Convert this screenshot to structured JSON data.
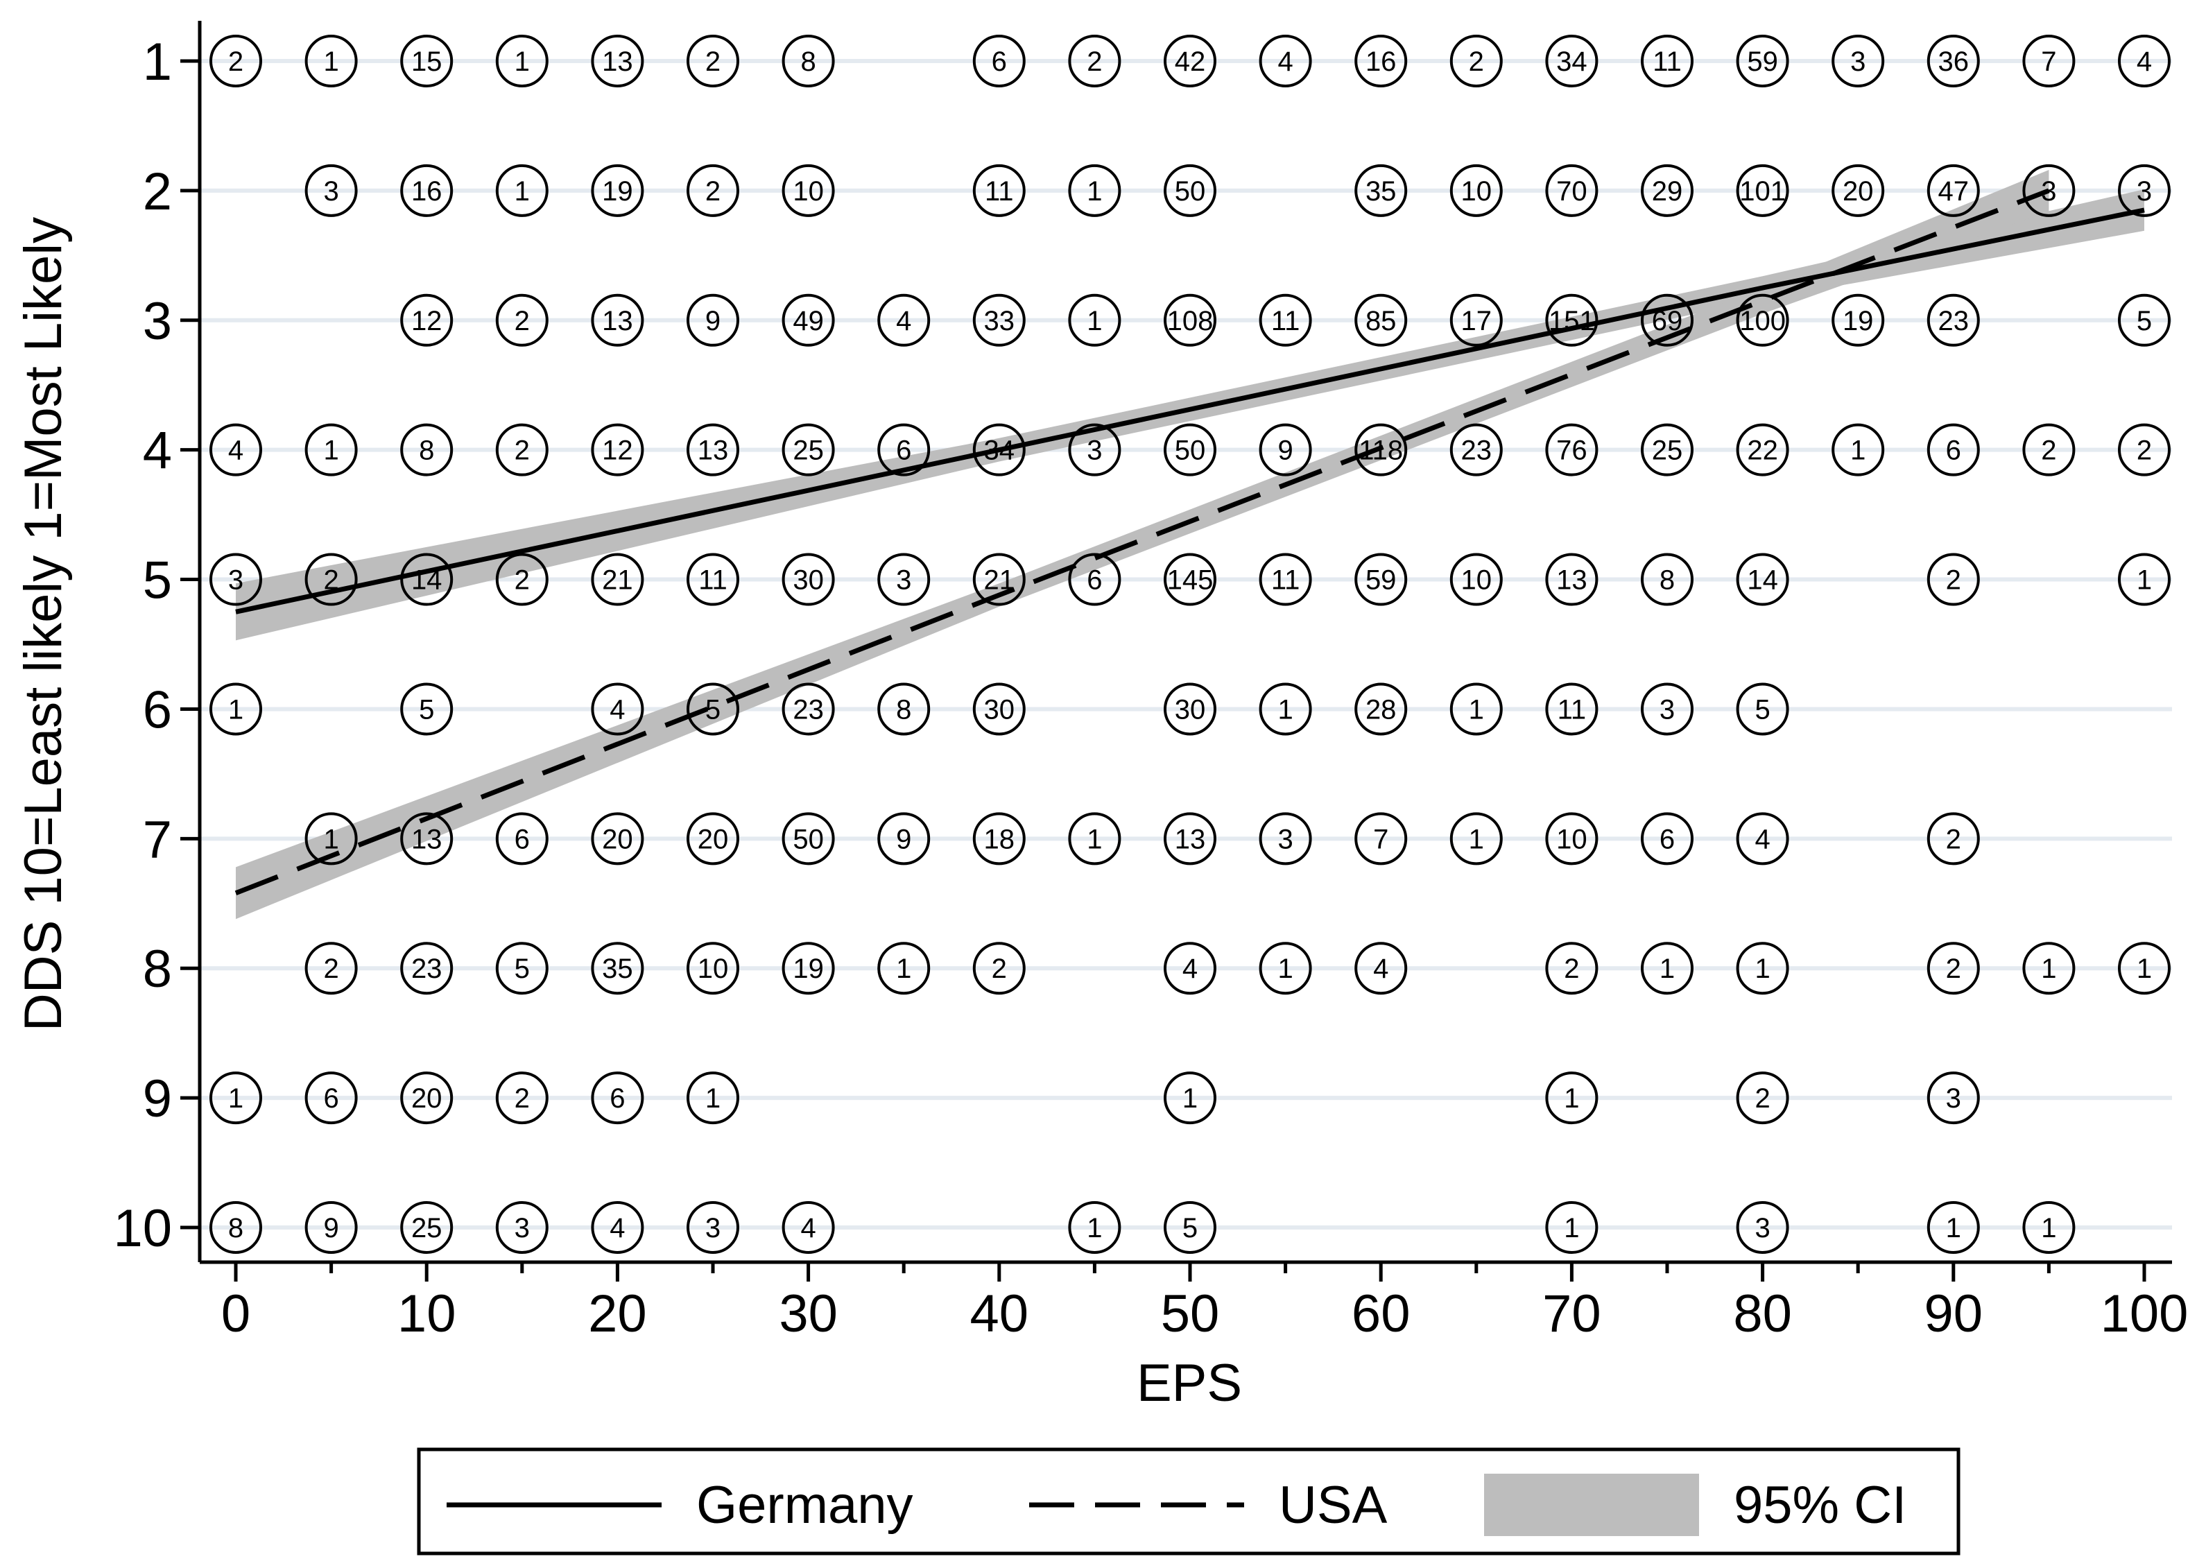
{
  "chart_data": {
    "type": "scatter",
    "xlabel": "EPS",
    "ylabel": "DDS 10=Least likely 1=Most Likely",
    "xlim": [
      0,
      100
    ],
    "ylim": [
      1,
      10
    ],
    "y_reversed": true,
    "x_ticks": [
      0,
      10,
      20,
      30,
      40,
      50,
      60,
      70,
      80,
      90,
      100
    ],
    "y_ticks": [
      1,
      2,
      3,
      4,
      5,
      6,
      7,
      8,
      9,
      10
    ],
    "grid": "horizontal",
    "legend_position": "bottom",
    "colors": {
      "band": "#bdbdbd",
      "line": "#000000",
      "grid": "#e4eaf0"
    },
    "count_markers": [
      [
        0,
        1,
        2
      ],
      [
        5,
        1,
        1
      ],
      [
        10,
        1,
        15
      ],
      [
        15,
        1,
        1
      ],
      [
        20,
        1,
        13
      ],
      [
        25,
        1,
        2
      ],
      [
        30,
        1,
        8
      ],
      [
        40,
        1,
        6
      ],
      [
        45,
        1,
        2
      ],
      [
        50,
        1,
        42
      ],
      [
        55,
        1,
        4
      ],
      [
        60,
        1,
        16
      ],
      [
        65,
        1,
        2
      ],
      [
        70,
        1,
        34
      ],
      [
        75,
        1,
        11
      ],
      [
        80,
        1,
        59
      ],
      [
        85,
        1,
        3
      ],
      [
        90,
        1,
        36
      ],
      [
        95,
        1,
        7
      ],
      [
        100,
        1,
        4
      ],
      [
        5,
        2,
        3
      ],
      [
        10,
        2,
        16
      ],
      [
        15,
        2,
        1
      ],
      [
        20,
        2,
        19
      ],
      [
        25,
        2,
        2
      ],
      [
        30,
        2,
        10
      ],
      [
        40,
        2,
        11
      ],
      [
        45,
        2,
        1
      ],
      [
        50,
        2,
        50
      ],
      [
        60,
        2,
        35
      ],
      [
        65,
        2,
        10
      ],
      [
        70,
        2,
        70
      ],
      [
        75,
        2,
        29
      ],
      [
        80,
        2,
        101
      ],
      [
        85,
        2,
        20
      ],
      [
        90,
        2,
        47
      ],
      [
        95,
        2,
        3
      ],
      [
        100,
        2,
        3
      ],
      [
        10,
        3,
        12
      ],
      [
        15,
        3,
        2
      ],
      [
        20,
        3,
        13
      ],
      [
        25,
        3,
        9
      ],
      [
        30,
        3,
        49
      ],
      [
        35,
        3,
        4
      ],
      [
        40,
        3,
        33
      ],
      [
        45,
        3,
        1
      ],
      [
        50,
        3,
        108
      ],
      [
        55,
        3,
        11
      ],
      [
        60,
        3,
        85
      ],
      [
        65,
        3,
        17
      ],
      [
        70,
        3,
        151
      ],
      [
        75,
        3,
        69
      ],
      [
        80,
        3,
        100
      ],
      [
        85,
        3,
        19
      ],
      [
        90,
        3,
        23
      ],
      [
        100,
        3,
        5
      ],
      [
        0,
        4,
        4
      ],
      [
        5,
        4,
        1
      ],
      [
        10,
        4,
        8
      ],
      [
        15,
        4,
        2
      ],
      [
        20,
        4,
        12
      ],
      [
        25,
        4,
        13
      ],
      [
        30,
        4,
        25
      ],
      [
        35,
        4,
        6
      ],
      [
        40,
        4,
        34
      ],
      [
        45,
        4,
        3
      ],
      [
        50,
        4,
        50
      ],
      [
        55,
        4,
        9
      ],
      [
        60,
        4,
        118
      ],
      [
        65,
        4,
        23
      ],
      [
        70,
        4,
        76
      ],
      [
        75,
        4,
        25
      ],
      [
        80,
        4,
        22
      ],
      [
        85,
        4,
        1
      ],
      [
        90,
        4,
        6
      ],
      [
        95,
        4,
        2
      ],
      [
        100,
        4,
        2
      ],
      [
        0,
        5,
        3
      ],
      [
        5,
        5,
        2
      ],
      [
        10,
        5,
        14
      ],
      [
        15,
        5,
        2
      ],
      [
        20,
        5,
        21
      ],
      [
        25,
        5,
        11
      ],
      [
        30,
        5,
        30
      ],
      [
        35,
        5,
        3
      ],
      [
        40,
        5,
        21
      ],
      [
        45,
        5,
        6
      ],
      [
        50,
        5,
        145
      ],
      [
        55,
        5,
        11
      ],
      [
        60,
        5,
        59
      ],
      [
        65,
        5,
        10
      ],
      [
        70,
        5,
        13
      ],
      [
        75,
        5,
        8
      ],
      [
        80,
        5,
        14
      ],
      [
        90,
        5,
        2
      ],
      [
        100,
        5,
        1
      ],
      [
        0,
        6,
        1
      ],
      [
        10,
        6,
        5
      ],
      [
        20,
        6,
        4
      ],
      [
        25,
        6,
        5
      ],
      [
        30,
        6,
        23
      ],
      [
        35,
        6,
        8
      ],
      [
        40,
        6,
        30
      ],
      [
        50,
        6,
        30
      ],
      [
        55,
        6,
        1
      ],
      [
        60,
        6,
        28
      ],
      [
        65,
        6,
        1
      ],
      [
        70,
        6,
        11
      ],
      [
        75,
        6,
        3
      ],
      [
        80,
        6,
        5
      ],
      [
        5,
        7,
        1
      ],
      [
        10,
        7,
        13
      ],
      [
        15,
        7,
        6
      ],
      [
        20,
        7,
        20
      ],
      [
        25,
        7,
        20
      ],
      [
        30,
        7,
        50
      ],
      [
        35,
        7,
        9
      ],
      [
        40,
        7,
        18
      ],
      [
        45,
        7,
        1
      ],
      [
        50,
        7,
        13
      ],
      [
        55,
        7,
        3
      ],
      [
        60,
        7,
        7
      ],
      [
        65,
        7,
        1
      ],
      [
        70,
        7,
        10
      ],
      [
        75,
        7,
        6
      ],
      [
        80,
        7,
        4
      ],
      [
        90,
        7,
        2
      ],
      [
        5,
        8,
        2
      ],
      [
        10,
        8,
        23
      ],
      [
        15,
        8,
        5
      ],
      [
        20,
        8,
        35
      ],
      [
        25,
        8,
        10
      ],
      [
        30,
        8,
        19
      ],
      [
        35,
        8,
        1
      ],
      [
        40,
        8,
        2
      ],
      [
        50,
        8,
        4
      ],
      [
        55,
        8,
        1
      ],
      [
        60,
        8,
        4
      ],
      [
        70,
        8,
        2
      ],
      [
        75,
        8,
        1
      ],
      [
        80,
        8,
        1
      ],
      [
        90,
        8,
        2
      ],
      [
        95,
        8,
        1
      ],
      [
        100,
        8,
        1
      ],
      [
        0,
        9,
        1
      ],
      [
        5,
        9,
        6
      ],
      [
        10,
        9,
        20
      ],
      [
        15,
        9,
        2
      ],
      [
        20,
        9,
        6
      ],
      [
        25,
        9,
        1
      ],
      [
        50,
        9,
        1
      ],
      [
        70,
        9,
        1
      ],
      [
        80,
        9,
        2
      ],
      [
        90,
        9,
        3
      ],
      [
        0,
        10,
        8
      ],
      [
        5,
        10,
        9
      ],
      [
        10,
        10,
        25
      ],
      [
        15,
        10,
        3
      ],
      [
        20,
        10,
        4
      ],
      [
        25,
        10,
        3
      ],
      [
        30,
        10,
        4
      ],
      [
        45,
        10,
        1
      ],
      [
        50,
        10,
        5
      ],
      [
        70,
        10,
        1
      ],
      [
        80,
        10,
        3
      ],
      [
        90,
        10,
        1
      ],
      [
        95,
        10,
        1
      ]
    ],
    "series": [
      {
        "name": "Germany",
        "line_style": "solid",
        "x": [
          0,
          40,
          80,
          100
        ],
        "y": [
          5.25,
          4.0,
          2.75,
          2.15
        ],
        "ci_halfwidth": [
          0.22,
          0.09,
          0.09,
          0.16
        ]
      },
      {
        "name": "USA",
        "line_style": "dashed",
        "x": [
          0,
          40,
          80,
          95
        ],
        "y": [
          7.42,
          5.12,
          2.85,
          2.0
        ],
        "ci_halfwidth": [
          0.2,
          0.09,
          0.1,
          0.16
        ]
      }
    ],
    "legend": [
      {
        "label": "Germany",
        "style": "solid"
      },
      {
        "label": "USA",
        "style": "dashed"
      },
      {
        "label": "95% CI",
        "style": "band"
      }
    ]
  }
}
